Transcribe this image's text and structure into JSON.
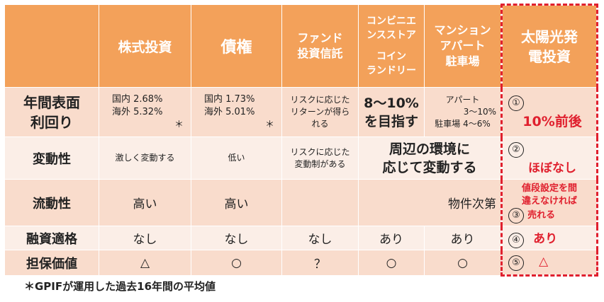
{
  "header": {
    "corner": "",
    "stocks": "株式投資",
    "bonds": "債権",
    "fund": [
      "ファンド",
      "投資信託"
    ],
    "convenience": [
      "コンビニエ",
      "ンスストア",
      "",
      "コイン",
      "ランドリー"
    ],
    "mansion": [
      "マンション",
      "アパート",
      "駐車場"
    ],
    "solar": [
      "太陽光発",
      "電投資"
    ]
  },
  "rows": {
    "yield": {
      "label": [
        "年間表面",
        "利回り"
      ],
      "stocks": [
        "国内 2.68%",
        "海外 5.32%",
        "＊"
      ],
      "bonds": [
        "国内 1.73%",
        "海外 5.01%",
        "＊"
      ],
      "fund": [
        "リスクに応じた",
        "リターンが得ら",
        "れる"
      ],
      "convenience": [
        "8〜10%",
        "を目指す"
      ],
      "mansion": [
        "アパート",
        "3〜10%",
        "駐車場 4〜6%"
      ],
      "solar_num": "①",
      "solar": "10%前後"
    },
    "volatility": {
      "label": "変動性",
      "stocks": "激しく変動する",
      "bonds": "低い",
      "fund": [
        "リスクに応じた",
        "変動制がある"
      ],
      "merged": [
        "周辺の環境に",
        "応じて変動する"
      ],
      "solar_num": "②",
      "solar": "ほぼなし"
    },
    "liquidity": {
      "label": "流動性",
      "stocks": "高い",
      "bonds": "高い",
      "fund": "",
      "merged": "物件次第",
      "solar_num": "③",
      "solar": [
        "値段設定を間",
        "違えなければ",
        "売れる"
      ]
    },
    "financing": {
      "label": "融資適格",
      "stocks": "なし",
      "bonds": "なし",
      "fund": "なし",
      "convenience": "あり",
      "mansion": "あり",
      "solar_num": "④",
      "solar": "あり"
    },
    "collateral": {
      "label": "担保価値",
      "stocks": "△",
      "bonds": "○",
      "fund": "？",
      "convenience": "○",
      "mansion": "○",
      "solar_num": "⑤",
      "solar": "△"
    }
  },
  "footnote": "＊GPIFが運用した過去16年間の平均値",
  "colors": {
    "header": "#f3a15a",
    "row_dark": "#f9dccc",
    "row_light": "#fbeee7",
    "highlight": "#e0202e"
  }
}
